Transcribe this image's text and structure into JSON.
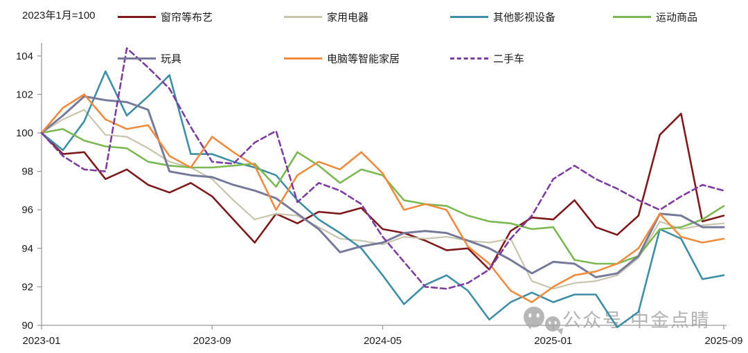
{
  "header": {
    "note": "2023年1月=100"
  },
  "watermark": {
    "text": "公众号·中金点睛",
    "icon": "wechat-bubbles-icon",
    "color": "#a6a6a6"
  },
  "chart_data": {
    "type": "line",
    "title": "",
    "note": "2023年1月=100",
    "grid": "off",
    "legend_position": "top",
    "axis_color": "#9b9b9b",
    "x": [
      "2023-01",
      "2023-02",
      "2023-03",
      "2023-04",
      "2023-05",
      "2023-06",
      "2023-07",
      "2023-08",
      "2023-09",
      "2023-10",
      "2023-11",
      "2023-12",
      "2024-01",
      "2024-02",
      "2024-03",
      "2024-04",
      "2024-05",
      "2024-06",
      "2024-07",
      "2024-08",
      "2024-09",
      "2024-10",
      "2024-11",
      "2024-12",
      "2025-01",
      "2025-02",
      "2025-03",
      "2025-04",
      "2025-05",
      "2025-06",
      "2025-07",
      "2025-08",
      "2025-09"
    ],
    "x_tick_labels": [
      "2023-01",
      "2023-09",
      "2024-05",
      "2025-01",
      "2025-09"
    ],
    "x_tick_month_index": [
      0,
      8,
      16,
      24,
      32
    ],
    "ylim": [
      90,
      104.7
    ],
    "y_ticks": [
      90,
      92,
      94,
      96,
      98,
      100,
      102,
      104
    ],
    "legend_rows": [
      [
        0,
        1,
        2,
        3
      ],
      [
        4,
        5,
        6
      ]
    ],
    "series": [
      {
        "name": "窗帘等布艺",
        "color": "#7E191B",
        "dash": false,
        "width": 2.6,
        "values": [
          100,
          98.9,
          99.0,
          97.6,
          98.1,
          97.3,
          96.9,
          97.4,
          96.7,
          95.5,
          94.3,
          95.8,
          95.3,
          95.9,
          95.8,
          96.1,
          95.0,
          94.8,
          94.4,
          93.9,
          94.0,
          92.9,
          94.9,
          95.6,
          95.5,
          96.5,
          95.1,
          94.7,
          95.7,
          99.9,
          101.0,
          95.4,
          95.7
        ]
      },
      {
        "name": "家用电器",
        "color": "#C8C4AE",
        "dash": false,
        "width": 2.2,
        "values": [
          100,
          100.7,
          101.2,
          99.9,
          99.8,
          99.2,
          98.5,
          98.2,
          97.6,
          96.5,
          95.5,
          95.8,
          95.7,
          95.1,
          94.5,
          94.4,
          94.2,
          94.6,
          94.5,
          94.6,
          94.4,
          94.3,
          94.5,
          92.3,
          91.9,
          92.2,
          92.3,
          92.6,
          93.5,
          95.4,
          95.0,
          95.2,
          95.3
        ]
      },
      {
        "name": "其他影视设备",
        "color": "#3E8EA5",
        "dash": false,
        "width": 2.6,
        "values": [
          100,
          99.1,
          100.6,
          103.2,
          100.9,
          101.9,
          103.0,
          98.9,
          98.9,
          98.5,
          98.2,
          97.8,
          96.5,
          95.5,
          94.8,
          94.0,
          92.6,
          91.1,
          92.1,
          92.6,
          91.8,
          90.3,
          91.2,
          91.7,
          91.2,
          91.6,
          91.6,
          89.9,
          90.7,
          95.0,
          94.5,
          92.4,
          92.6
        ]
      },
      {
        "name": "运动商品",
        "color": "#7CB851",
        "dash": false,
        "width": 2.6,
        "values": [
          100,
          100.2,
          99.6,
          99.3,
          99.2,
          98.5,
          98.3,
          98.2,
          98.2,
          98.3,
          98.4,
          97.2,
          99.0,
          98.3,
          97.4,
          98.1,
          97.8,
          96.5,
          96.3,
          96.2,
          95.7,
          95.4,
          95.3,
          95.0,
          95.1,
          93.4,
          93.2,
          93.2,
          93.6,
          95.0,
          95.1,
          95.5,
          96.2
        ]
      },
      {
        "name": "玩具",
        "color": "#77799B",
        "dash": false,
        "width": 3,
        "values": [
          100,
          100.9,
          101.9,
          101.7,
          101.6,
          101.2,
          98.0,
          97.8,
          97.7,
          97.3,
          97.0,
          96.6,
          95.8,
          95.0,
          93.8,
          94.1,
          94.3,
          94.8,
          94.9,
          94.8,
          94.4,
          94.0,
          93.4,
          92.7,
          93.3,
          93.2,
          92.5,
          92.7,
          93.6,
          95.8,
          95.7,
          95.1,
          95.1
        ]
      },
      {
        "name": "电脑等智能家居",
        "color": "#EF8B3F",
        "dash": false,
        "width": 2.6,
        "values": [
          100,
          101.3,
          102.0,
          100.7,
          100.2,
          100.4,
          98.8,
          98.2,
          99.8,
          99.0,
          98.3,
          96.0,
          97.8,
          98.5,
          98.1,
          99.0,
          97.9,
          96.0,
          96.3,
          96.0,
          94.1,
          93.2,
          91.8,
          91.2,
          92.0,
          92.6,
          92.8,
          93.2,
          94.0,
          95.8,
          94.6,
          94.3,
          94.5
        ]
      },
      {
        "name": "二手车",
        "color": "#7D3CA0",
        "dash": true,
        "width": 2.6,
        "values": [
          100,
          98.8,
          98.1,
          98.0,
          104.4,
          103.4,
          102.3,
          100.3,
          98.5,
          98.4,
          99.5,
          100.1,
          96.4,
          97.4,
          97.0,
          96.3,
          94.6,
          93.3,
          92.0,
          91.9,
          92.2,
          92.9,
          94.5,
          95.7,
          97.6,
          98.3,
          97.6,
          97.1,
          96.5,
          96.0,
          96.7,
          97.3,
          97.0
        ]
      }
    ]
  }
}
